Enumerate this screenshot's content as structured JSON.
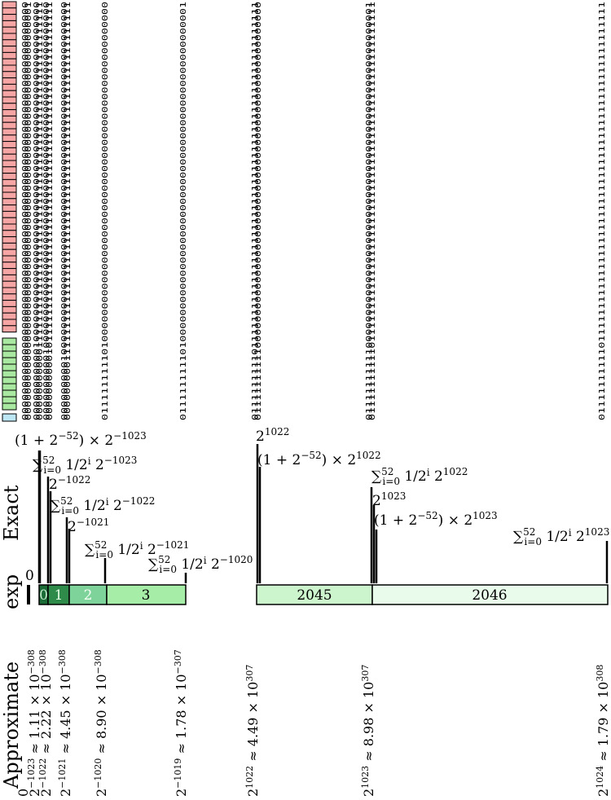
{
  "row_labels": {
    "exp": "exp",
    "exact": "Exact",
    "approximate": "Approximate"
  },
  "colors": {
    "sign": "#bde7f5",
    "exponent": "#a8e8a0",
    "mantissa": "#f6a5a5",
    "seg0": "#1a6b35",
    "seg1": "#2e8b4a",
    "seg2": "#7ed39a",
    "seg3": "#a6eea8",
    "seg2045": "#cdf5cd",
    "seg2046": "#e9fbea"
  },
  "exp_segments": [
    {
      "label": "0",
      "color_key": "seg0",
      "light_text": true
    },
    {
      "label": "1",
      "color_key": "seg1",
      "light_text": true
    },
    {
      "label": "2",
      "color_key": "seg2",
      "light_text": true
    },
    {
      "label": "3",
      "color_key": "seg3",
      "light_text": false
    },
    {
      "label": "2045",
      "color_key": "seg2045",
      "light_text": false
    },
    {
      "label": "2046",
      "color_key": "seg2046",
      "light_text": false
    }
  ],
  "exact_labels": [
    {
      "id": "e0",
      "text": "0"
    },
    {
      "id": "e1",
      "text": "(1 + 2",
      "sup": "−52",
      "tail": ") × 2",
      "sup2": "−1023"
    },
    {
      "id": "e2",
      "text": "∑",
      "sub": "i=0",
      "sup": "52",
      "tail": " 1/2",
      "sup2": "i",
      "tail2": " 2",
      "sup3": "−1023"
    },
    {
      "id": "e3",
      "text": "2",
      "sup": "−1022"
    },
    {
      "id": "e4",
      "text": "∑",
      "sub": "i=0",
      "sup": "52",
      "tail": " 1/2",
      "sup2": "i",
      "tail2": " 2",
      "sup3": "−1022"
    },
    {
      "id": "e5",
      "text": "2",
      "sup": "−1021"
    },
    {
      "id": "e6",
      "text": "∑",
      "sub": "i=0",
      "sup": "52",
      "tail": " 1/2",
      "sup2": "i",
      "tail2": " 2",
      "sup3": "−1021"
    },
    {
      "id": "e7",
      "text": "∑",
      "sub": "i=0",
      "sup": "52",
      "tail": " 1/2",
      "sup2": "i",
      "tail2": " 2",
      "sup3": "−1020"
    },
    {
      "id": "e8",
      "text": "2",
      "sup": "1022"
    },
    {
      "id": "e9",
      "text": "(1 + 2",
      "sup": "−52",
      "tail": ") × 2",
      "sup2": "1022"
    },
    {
      "id": "e10",
      "text": "∑",
      "sub": "i=0",
      "sup": "52",
      "tail": " 1/2",
      "sup2": "i",
      "tail2": " 2",
      "sup3": "1022"
    },
    {
      "id": "e11",
      "text": "2",
      "sup": "1023"
    },
    {
      "id": "e12",
      "text": "(1 + 2",
      "sup": "−52",
      "tail": ") × 2",
      "sup2": "1023"
    },
    {
      "id": "e13",
      "text": "∑",
      "sub": "i=0",
      "sup": "52",
      "tail": " 1/2",
      "sup2": "i",
      "tail2": " 2",
      "sup3": "1023"
    }
  ],
  "approx_labels": [
    {
      "id": "a0",
      "base": "0",
      "sup": "",
      "rest": ""
    },
    {
      "id": "a1",
      "base": "2",
      "sup": "−1023",
      "rest": " ≈ 1.11 × 10",
      "sup2": "−308"
    },
    {
      "id": "a2",
      "base": "2",
      "sup": "−1022",
      "rest": " ≈ 2.22 × 10",
      "sup2": "−308"
    },
    {
      "id": "a3",
      "base": "2",
      "sup": "−1021",
      "rest": " ≈ 4.45 × 10",
      "sup2": "−308"
    },
    {
      "id": "a4",
      "base": "2",
      "sup": "−1020",
      "rest": " ≈ 8.90 × 10",
      "sup2": "−308"
    },
    {
      "id": "a5",
      "base": "2",
      "sup": "−1019",
      "rest": " ≈ 1.78 × 10",
      "sup2": "−307"
    },
    {
      "id": "a6",
      "base": "2",
      "sup": "1022",
      "rest": " ≈ 4.49 × 10",
      "sup2": "307"
    },
    {
      "id": "a7",
      "base": "2",
      "sup": "1023",
      "rest": " ≈ 8.98 × 10",
      "sup2": "307"
    },
    {
      "id": "a8",
      "base": "2",
      "sup": "1024",
      "rest": " ≈ 1.79 × 10",
      "sup2": "308"
    }
  ],
  "bit_strings": [
    "0000000000000000000000000000000000000000000000000000000000000000",
    "0000000000000000000000000000000000000000000000000000000000000001",
    "0000000000010000000000000000000000000000000000000000000000000000",
    "0000000000011111111111111111111111111111111111111111111111111111",
    "0000000000100000000000000000000000000000000000000000000000000000",
    "0000000000101111111111111111111111111111111111111111111111111111",
    "0000000001000000000000000000000000000000000000000000000000000000",
    "0000000001111111111111111111111111111111111111111111111111111111",
    "0111111111010000000000000000000000000000000000000000000000000000",
    "0111111111010000000000000000000000000000000000000000000000000001",
    "0111111111011111111111111111111111111111111111111111111111111111",
    "0111111111100000000000000000000000000000000000000000000000000000",
    "0111111111100000000000000000000000000000000000000000000000000001",
    "0111111111101111111111111111111111111111111111111111111111111111"
  ]
}
